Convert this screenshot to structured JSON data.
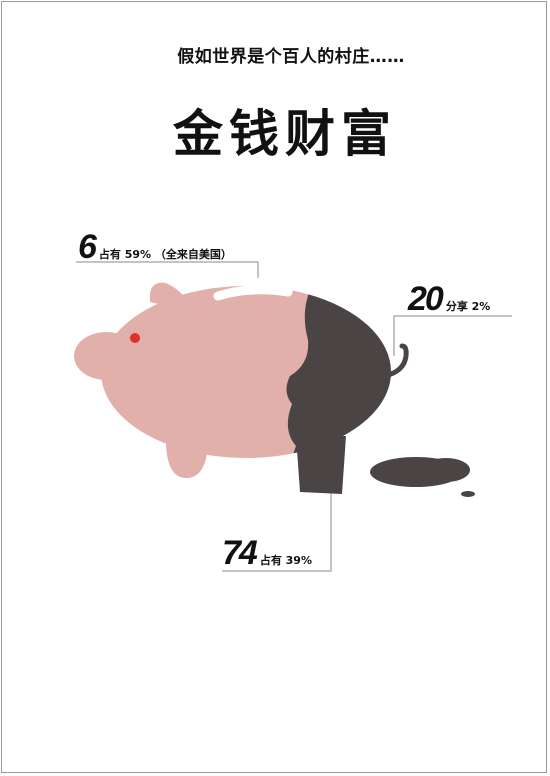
{
  "subtitle": "假如世界是个百人的村庄……",
  "title": "金钱财富",
  "stats": [
    {
      "number": "6",
      "text": "占有 59% （全来自美国）"
    },
    {
      "number": "20",
      "text": "分享 2%"
    },
    {
      "number": "74",
      "text": "占有 39%"
    }
  ],
  "colors": {
    "pig": "#e2b0aa",
    "dark": "#4a4444",
    "eye": "#e0302a",
    "line": "#888888"
  }
}
